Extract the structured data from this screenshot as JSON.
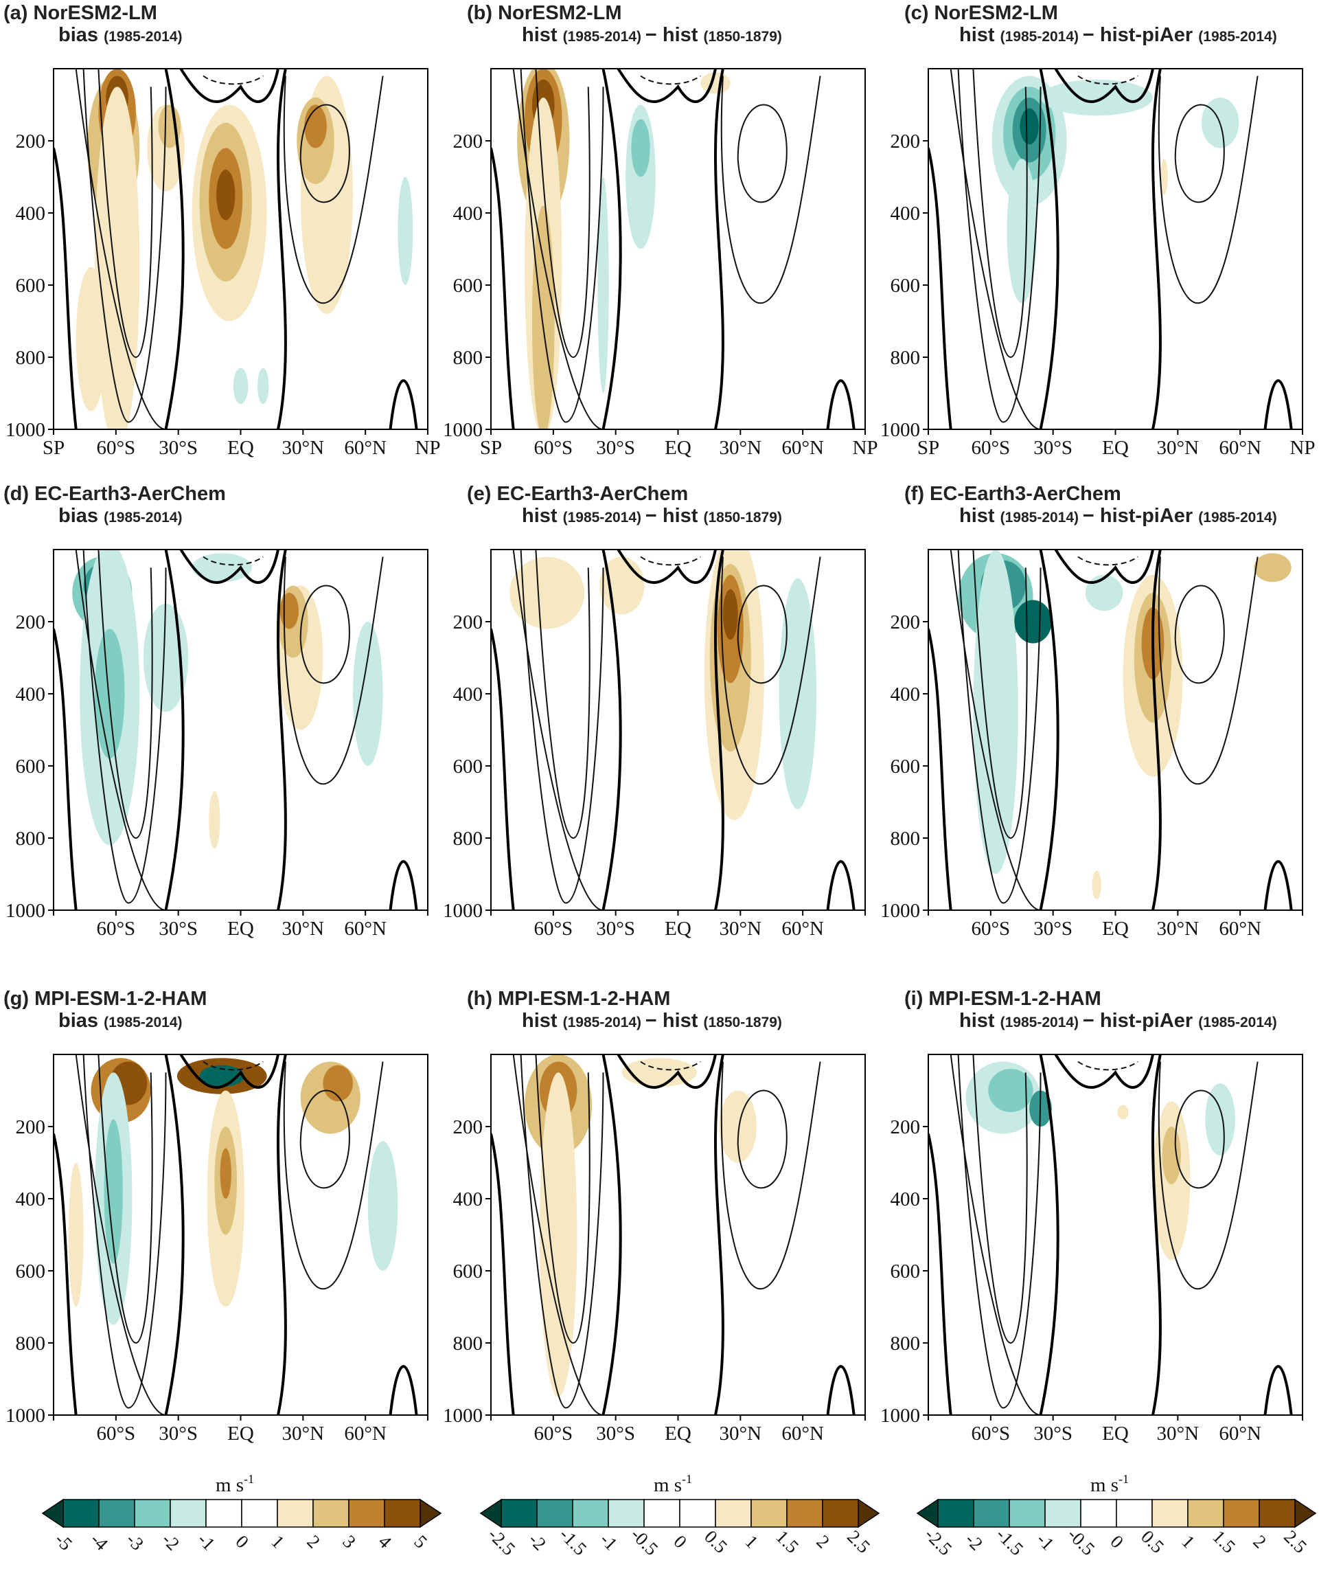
{
  "chart_data": {
    "type": "heatmap",
    "description_axes": {
      "y_range_hPa": [
        0,
        1000
      ],
      "y_ticks": [
        "200",
        "400",
        "600",
        "800",
        "1000"
      ],
      "x_range_lat": [
        -90,
        90
      ]
    },
    "panels": [
      {
        "id": "a",
        "label": "(a)",
        "model": "NorESM2-LM",
        "kind": "bias",
        "period1": "(1985-2014)",
        "xticks": [
          "SP",
          "60°S",
          "30°S",
          "EQ",
          "30°N",
          "60°N",
          "NP"
        ],
        "cbar": 0
      },
      {
        "id": "b",
        "label": "(b)",
        "model": "NorESM2-LM",
        "kind": "hist",
        "period1": "(1985-2014)",
        "minus": "−",
        "kind2": "hist",
        "period2": "(1850-1879)",
        "xticks": [
          "SP",
          "60°S",
          "30°S",
          "EQ",
          "30°N",
          "60°N",
          "NP"
        ],
        "cbar": 1
      },
      {
        "id": "c",
        "label": "(c)",
        "model": "NorESM2-LM",
        "kind": "hist",
        "period1": "(1985-2014)",
        "minus": "−",
        "kind2": "hist-piAer",
        "period2": "(1985-2014)",
        "xticks": [
          "SP",
          "60°S",
          "30°S",
          "EQ",
          "30°N",
          "60°N",
          "NP"
        ],
        "cbar": 2
      },
      {
        "id": "d",
        "label": "(d)",
        "model": "EC-Earth3-AerChem",
        "kind": "bias",
        "period1": "(1985-2014)",
        "xticks": [
          "",
          "60°S",
          "30°S",
          "EQ",
          "30°N",
          "60°N",
          ""
        ],
        "cbar": 0
      },
      {
        "id": "e",
        "label": "(e)",
        "model": "EC-Earth3-AerChem",
        "kind": "hist",
        "period1": "(1985-2014)",
        "minus": "−",
        "kind2": "hist",
        "period2": "(1850-1879)",
        "xticks": [
          "",
          "60°S",
          "30°S",
          "EQ",
          "30°N",
          "60°N",
          ""
        ],
        "cbar": 1
      },
      {
        "id": "f",
        "label": "(f)",
        "model": "EC-Earth3-AerChem",
        "kind": "hist",
        "period1": "(1985-2014)",
        "minus": "−",
        "kind2": "hist-piAer",
        "period2": "(1985-2014)",
        "xticks": [
          "",
          "60°S",
          "30°S",
          "EQ",
          "30°N",
          "60°N",
          ""
        ],
        "cbar": 2
      },
      {
        "id": "g",
        "label": "(g)",
        "model": "MPI-ESM-1-2-HAM",
        "kind": "bias",
        "period1": "(1985-2014)",
        "xticks": [
          "",
          "60°S",
          "30°S",
          "EQ",
          "30°N",
          "60°N",
          ""
        ],
        "cbar": 0
      },
      {
        "id": "h",
        "label": "(h)",
        "model": "MPI-ESM-1-2-HAM",
        "kind": "hist",
        "period1": "(1985-2014)",
        "minus": "−",
        "kind2": "hist",
        "period2": "(1850-1879)",
        "xticks": [
          "",
          "60°S",
          "30°S",
          "EQ",
          "30°N",
          "60°N",
          ""
        ],
        "cbar": 1
      },
      {
        "id": "i",
        "label": "(i)",
        "model": "MPI-ESM-1-2-HAM",
        "kind": "hist",
        "period1": "(1985-2014)",
        "minus": "−",
        "kind2": "hist-piAer",
        "period2": "(1985-2014)",
        "xticks": [
          "",
          "60°S",
          "30°S",
          "EQ",
          "30°N",
          "60°N",
          ""
        ],
        "cbar": 2
      }
    ],
    "colorbars": [
      {
        "unit": "m s",
        "unit_exp": "-1",
        "ticks": [
          "-5",
          "-4",
          "-3",
          "-2",
          "-1",
          "0",
          "1",
          "2",
          "3",
          "4",
          "5"
        ]
      },
      {
        "unit": "m s",
        "unit_exp": "-1",
        "ticks": [
          "-2.5",
          "-2",
          "-1.5",
          "-1",
          "-0.5",
          "0",
          "0.5",
          "1",
          "1.5",
          "2",
          "2.5"
        ]
      },
      {
        "unit": "m s",
        "unit_exp": "-1",
        "ticks": [
          "-2.5",
          "-2",
          "-1.5",
          "-1",
          "-0.5",
          "0",
          "0.5",
          "1",
          "1.5",
          "2",
          "2.5"
        ]
      }
    ],
    "colorbar_colors": [
      "#01665e",
      "#35978f",
      "#80cdc1",
      "#c7eae5",
      "#ffffff",
      "#ffffff",
      "#f6e8c3",
      "#dfc27d",
      "#bf812d",
      "#8c510a",
      "#543005"
    ],
    "shading_colors": {
      "brown": [
        "#f6e8c3",
        "#dfc27d",
        "#bf812d",
        "#8c510a",
        "#543005"
      ],
      "teal": [
        "#c7eae5",
        "#80cdc1",
        "#35978f",
        "#01665e",
        "#003c30"
      ]
    }
  }
}
